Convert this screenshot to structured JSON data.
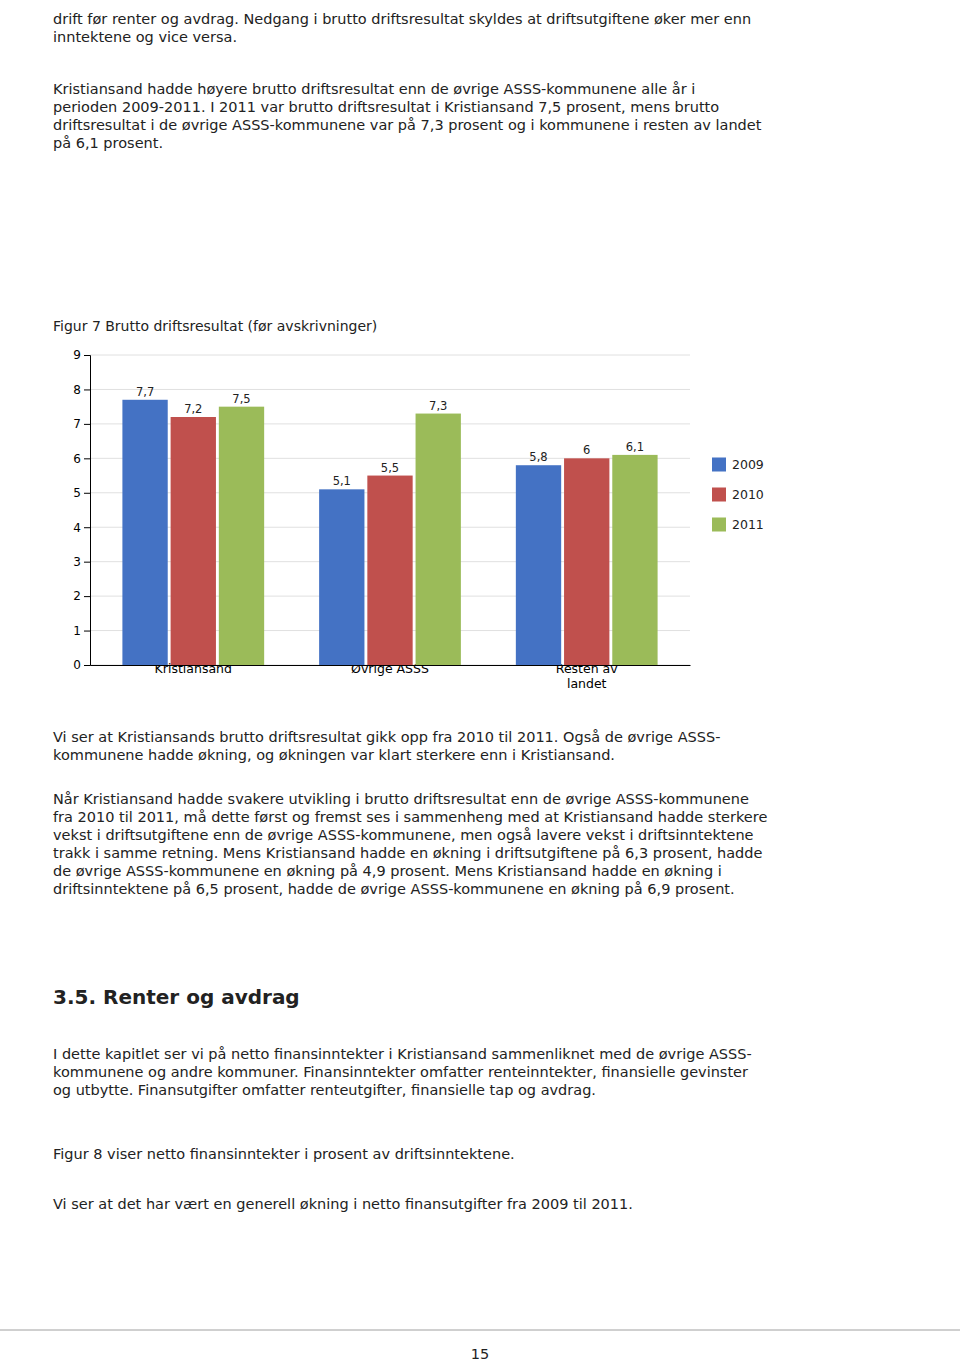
{
  "paragraphs": [
    "drift før renter og avdrag. Nedgang i brutto driftsresultat skyldes at driftsutgiftene øker mer enn\ninntektene og vice versa.",
    "Kristiansand hadde høyere brutto driftsresultat enn de øvrige ASSS-kommunene alle år i\nperioden 2009-2011. I 2011 var brutto driftsresultat i Kristiansand 7,5 prosent, mens brutto\ndriftsresultat i de øvrige ASSS-kommunene var på 7,3 prosent og i kommunene i resten av landet\npå 6,1 prosent.",
    "Vi ser at Kristiansands brutto driftsresultat gikk opp fra 2010 til 2011. Også de øvrige ASSS-\nkommunene hadde økning, og økningen var klart sterkere enn i Kristiansand.",
    "Når Kristiansand hadde svakere utvikling i brutto driftsresultat enn de øvrige ASSS-kommunene\nfra 2010 til 2011, må dette først og fremst ses i sammenheng med at Kristiansand hadde sterkere\nvekst i driftsutgiftene enn de øvrige ASSS-kommunene, men også lavere vekst i driftsinntektene\ntrakk i samme retning. Mens Kristiansand hadde en økning i driftsutgiftene på 6,3 prosent, hadde\nde øvrige ASSS-kommunene en økning på 4,9 prosent. Mens Kristiansand hadde en økning i\ndriftsinntektene på 6,5 prosent, hadde de øvrige ASSS-kommunene en økning på 6,9 prosent.",
    "I dette kapitlet ser vi på netto finansinntekter i Kristiansand sammenliknet med de øvrige ASSS-\nkommunene og andre kommuner. Finansinntekter omfatter renteinntekter, finansielle gevinster\nog utbytte. Finansutgifter omfatter renteutgifter, finansielle tap og avdrag.",
    "Figur 8 viser netto finansinntekter i prosent av driftsinntektene.",
    "Vi ser at det har vært en generell økning i netto finansutgifter fra 2009 til 2011."
  ],
  "section_title": "3.5.\tRenter og avdrag",
  "page_number": "15",
  "chart_data": {
    "type": "bar",
    "title": "Figur 7 Brutto driftsresultat (før avskrivninger)",
    "categories": [
      "Kristiansand",
      "Øvrige ASSS",
      "Resten av\nlandet"
    ],
    "series": [
      {
        "name": "2009",
        "color": "#4472C4",
        "values": [
          7.7,
          5.1,
          5.8
        ],
        "value_labels": [
          "7,7",
          "5,1",
          "5,8"
        ]
      },
      {
        "name": "2010",
        "color": "#C0504D",
        "values": [
          7.2,
          5.5,
          6.0
        ],
        "value_labels": [
          "7,2",
          "5,5",
          "6"
        ]
      },
      {
        "name": "2011",
        "color": "#9BBB59",
        "values": [
          7.5,
          7.3,
          6.1
        ],
        "value_labels": [
          "7,5",
          "7,3",
          "6,1"
        ]
      }
    ],
    "ylim": [
      0,
      9
    ],
    "yticks": [
      0,
      1,
      2,
      3,
      4,
      5,
      6,
      7,
      8,
      9
    ],
    "grid": true,
    "data_labels": true,
    "legend": "right"
  }
}
